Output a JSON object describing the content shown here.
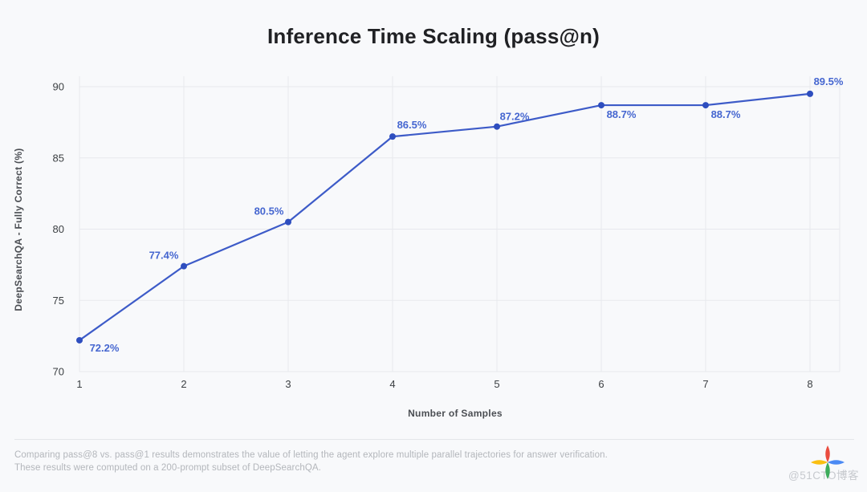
{
  "title": "Inference Time Scaling (pass@n)",
  "chart_data": {
    "type": "line",
    "x": [
      1,
      2,
      3,
      4,
      5,
      6,
      7,
      8
    ],
    "values": [
      72.2,
      77.4,
      80.5,
      86.5,
      87.2,
      88.7,
      88.7,
      89.5
    ],
    "point_labels": [
      "72.2%",
      "77.4%",
      "80.5%",
      "86.5%",
      "87.2%",
      "88.7%",
      "88.7%",
      "89.5%"
    ],
    "title": "Inference Time Scaling (pass@n)",
    "xlabel": "Number of Samples",
    "ylabel": "DeepSearchQA - Fully Correct (%)",
    "xlim": [
      1,
      8
    ],
    "ylim": [
      70,
      90
    ],
    "xticks": [
      1,
      2,
      3,
      4,
      5,
      6,
      7,
      8
    ],
    "yticks": [
      70,
      75,
      80,
      85,
      90
    ],
    "grid": true,
    "legend": false,
    "line_color": "#3d5bc8",
    "point_color": "#2e4ebf",
    "label_color": "#4566d0",
    "grid_color": "#e7e9ed"
  },
  "footer": {
    "line1": "Comparing pass@8 vs. pass@1 results demonstrates the value of letting the agent explore multiple parallel trajectories for answer verification.",
    "line2": "These results were computed on a 200-prompt subset of DeepSearchQA."
  },
  "watermark": {
    "text": "@51CTO博客",
    "icon": "sparkle-icon",
    "icon_colors": {
      "top": "#EA4335",
      "left": "#FBBC05",
      "right": "#4285F4",
      "bottom": "#34A853"
    }
  }
}
